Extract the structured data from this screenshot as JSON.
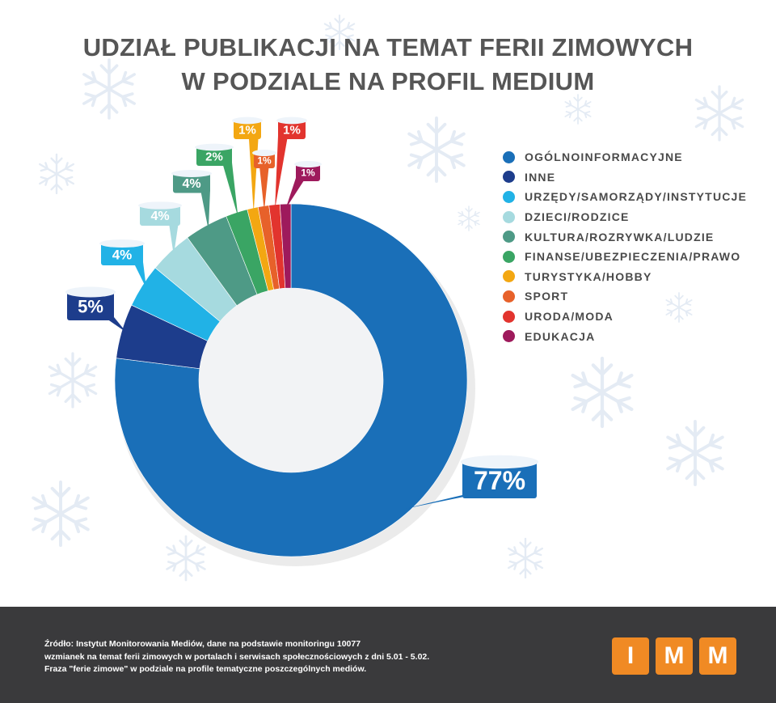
{
  "title_lines": [
    "UDZIAŁ PUBLIKACJI NA TEMAT FERII ZIMOWYCH",
    "W PODZIALE NA PROFIL MEDIUM"
  ],
  "chart_data": {
    "type": "pie",
    "variant": "donut",
    "title": "UDZIAŁ PUBLIKACJI NA TEMAT FERII ZIMOWYCH W PODZIALE NA PROFIL MEDIUM",
    "legend_position": "right",
    "categories": [
      "OGÓLNOINFORMACYJNE",
      "INNE",
      "URZĘDY/SAMORZĄDY/INSTYTUCJE",
      "DZIECI/RODZICE",
      "KULTURA/ROZRYWKA/LUDZIE",
      "FINANSE/UBEZPIECZENIA/PRAWO",
      "TURYSTYKA/HOBBY",
      "SPORT",
      "URODA/MODA",
      "EDUKACJA"
    ],
    "values": [
      77,
      5,
      4,
      4,
      4,
      2,
      1,
      1,
      1,
      1
    ],
    "labels": [
      "77%",
      "5%",
      "4%",
      "4%",
      "4%",
      "2%",
      "1%",
      "1%",
      "1%",
      "1%"
    ],
    "colors": [
      "#1a6fb8",
      "#1d3d8c",
      "#21b2e6",
      "#a6dadf",
      "#4e9a86",
      "#3aa564",
      "#f3a712",
      "#e7612a",
      "#e2342e",
      "#9e1a5c"
    ]
  },
  "footer": {
    "source_lines": [
      "Źródło: Instytut Monitorowania Mediów, dane na podstawie monitoringu 10077",
      "wzmianek na temat ferii zimowych w portalach i serwisach społecznościowych z dni 5.01 - 5.02.",
      "Fraza \"ferie zimowe\" w podziale na profile tematyczne poszczególnych mediów."
    ],
    "logo_letters": [
      "I",
      "M",
      "M"
    ]
  }
}
